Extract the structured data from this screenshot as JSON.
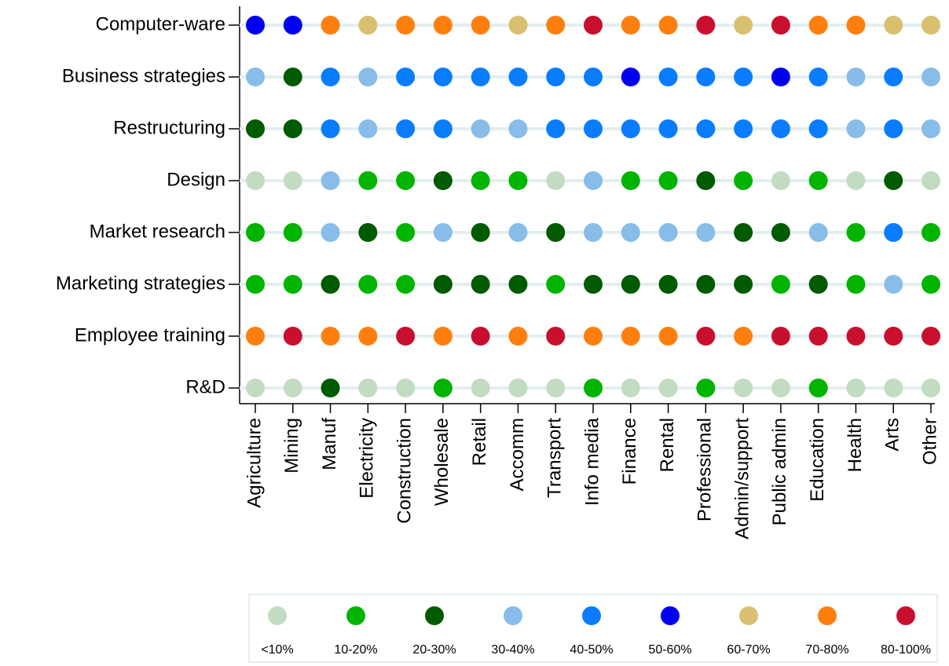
{
  "chart_data": {
    "type": "dot-matrix",
    "categories": [
      "Agriculture",
      "Mining",
      "Manuf",
      "Electricity",
      "Construction",
      "Wholesale",
      "Retail",
      "Accomm",
      "Transport",
      "Info media",
      "Finance",
      "Rental",
      "Professional",
      "Admin/support",
      "Public admin",
      "Education",
      "Health",
      "Arts",
      "Other"
    ],
    "legend": [
      {
        "label": "<10%",
        "color": "#c2dcc2"
      },
      {
        "label": "10-20%",
        "color": "#00b400"
      },
      {
        "label": "20-30%",
        "color": "#005a00"
      },
      {
        "label": "30-40%",
        "color": "#87bde8"
      },
      {
        "label": "40-50%",
        "color": "#0a7cff"
      },
      {
        "label": "50-60%",
        "color": "#0000f0"
      },
      {
        "label": "60-70%",
        "color": "#d8c070"
      },
      {
        "label": "70-80%",
        "color": "#ff7f0e"
      },
      {
        "label": "80-100%",
        "color": "#c8102e"
      }
    ],
    "series": [
      {
        "name": "Computer-ware",
        "values": [
          "50-60%",
          "50-60%",
          "70-80%",
          "60-70%",
          "70-80%",
          "70-80%",
          "70-80%",
          "60-70%",
          "70-80%",
          "80-100%",
          "70-80%",
          "70-80%",
          "80-100%",
          "60-70%",
          "80-100%",
          "70-80%",
          "70-80%",
          "60-70%",
          "60-70%"
        ]
      },
      {
        "name": "Business strategies",
        "values": [
          "30-40%",
          "20-30%",
          "40-50%",
          "30-40%",
          "40-50%",
          "40-50%",
          "40-50%",
          "40-50%",
          "40-50%",
          "40-50%",
          "50-60%",
          "40-50%",
          "40-50%",
          "40-50%",
          "50-60%",
          "40-50%",
          "30-40%",
          "40-50%",
          "30-40%"
        ]
      },
      {
        "name": "Restructuring",
        "values": [
          "20-30%",
          "20-30%",
          "40-50%",
          "30-40%",
          "40-50%",
          "40-50%",
          "30-40%",
          "30-40%",
          "40-50%",
          "40-50%",
          "40-50%",
          "40-50%",
          "40-50%",
          "40-50%",
          "40-50%",
          "40-50%",
          "30-40%",
          "40-50%",
          "30-40%"
        ]
      },
      {
        "name": "Design",
        "values": [
          "<10%",
          "<10%",
          "30-40%",
          "10-20%",
          "10-20%",
          "20-30%",
          "10-20%",
          "10-20%",
          "<10%",
          "30-40%",
          "10-20%",
          "10-20%",
          "20-30%",
          "10-20%",
          "<10%",
          "10-20%",
          "<10%",
          "20-30%",
          "<10%"
        ]
      },
      {
        "name": "Market research",
        "values": [
          "10-20%",
          "10-20%",
          "30-40%",
          "20-30%",
          "10-20%",
          "30-40%",
          "20-30%",
          "30-40%",
          "20-30%",
          "30-40%",
          "30-40%",
          "30-40%",
          "30-40%",
          "20-30%",
          "20-30%",
          "30-40%",
          "10-20%",
          "40-50%",
          "10-20%"
        ]
      },
      {
        "name": "Marketing strategies",
        "values": [
          "10-20%",
          "10-20%",
          "20-30%",
          "10-20%",
          "10-20%",
          "20-30%",
          "20-30%",
          "20-30%",
          "10-20%",
          "20-30%",
          "20-30%",
          "20-30%",
          "20-30%",
          "20-30%",
          "10-20%",
          "20-30%",
          "10-20%",
          "30-40%",
          "10-20%"
        ]
      },
      {
        "name": "Employee training",
        "values": [
          "70-80%",
          "80-100%",
          "70-80%",
          "70-80%",
          "80-100%",
          "70-80%",
          "80-100%",
          "70-80%",
          "80-100%",
          "70-80%",
          "70-80%",
          "70-80%",
          "80-100%",
          "70-80%",
          "80-100%",
          "80-100%",
          "80-100%",
          "80-100%",
          "80-100%"
        ]
      },
      {
        "name": "R&D",
        "values": [
          "<10%",
          "<10%",
          "20-30%",
          "<10%",
          "<10%",
          "10-20%",
          "<10%",
          "<10%",
          "<10%",
          "10-20%",
          "<10%",
          "<10%",
          "10-20%",
          "<10%",
          "<10%",
          "10-20%",
          "<10%",
          "<10%",
          "<10%"
        ]
      }
    ]
  }
}
